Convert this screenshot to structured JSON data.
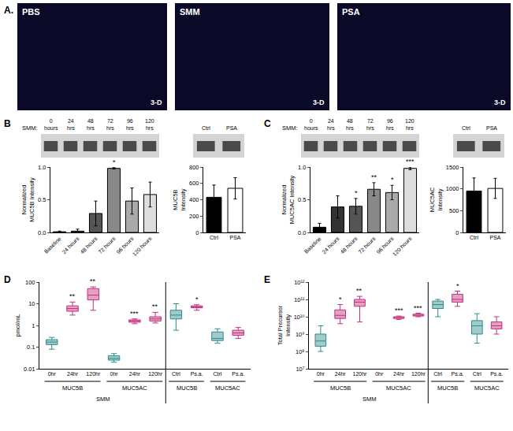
{
  "chart_data": [
    {
      "type": "image",
      "panel": "A.",
      "label": "PBS",
      "view": "3-D"
    },
    {
      "type": "image",
      "label": "SMM",
      "view": "3-D"
    },
    {
      "type": "image",
      "label": "PSA",
      "view": "3-D"
    },
    {
      "type": "blot",
      "panel": "B",
      "prefix": "SMM:",
      "lanes": [
        "0 hours",
        "24 hrs",
        "48 hrs",
        "72 hrs",
        "96 hrs",
        "120 hrs"
      ]
    },
    {
      "type": "bar",
      "categories": [
        "Baseline",
        "24 hours",
        "48 hours",
        "72 hours",
        "96 hours",
        "120 hours"
      ],
      "values": [
        0.01,
        0.02,
        0.29,
        0.98,
        0.48,
        0.58
      ],
      "errors": [
        0.01,
        0.03,
        0.19,
        0.01,
        0.2,
        0.19
      ],
      "significance": [
        null,
        null,
        null,
        "*",
        null,
        null
      ],
      "colors": [
        "#000000",
        "#333333",
        "#555555",
        "#888888",
        "#aaaaaa",
        "#dddddd"
      ],
      "ylabel": "Normalized MUC5B Intensity",
      "ylim": [
        0,
        1
      ],
      "yticks": [
        {
          "value": 0,
          "label": "0.0"
        },
        0.5,
        {
          "value": 1,
          "label": "1.0"
        }
      ]
    },
    {
      "type": "blot",
      "lanes": [
        "Ctrl",
        "PSA"
      ]
    },
    {
      "type": "bar",
      "categories": [
        "Ctrl",
        "PSA"
      ],
      "values": [
        430,
        540
      ],
      "errors": [
        150,
        130
      ],
      "colors": [
        "#000000",
        "#ffffff"
      ],
      "ylabel": "MUC5B Intensity",
      "ylim": [
        0,
        800
      ],
      "yticks": [
        0,
        200,
        400,
        600,
        800
      ]
    },
    {
      "type": "blot",
      "panel": "C",
      "prefix": "SMM:",
      "lanes": [
        "0 hours",
        "24 hrs",
        "48 hrs",
        "72 hrs",
        "96 hrs",
        "120 hrs"
      ]
    },
    {
      "type": "bar",
      "categories": [
        "Baseline",
        "24 hours",
        "48 hours",
        "72 hours",
        "96 hours",
        "120 hours"
      ],
      "values": [
        0.08,
        0.39,
        0.4,
        0.66,
        0.61,
        0.98
      ],
      "errors": [
        0.06,
        0.17,
        0.12,
        0.1,
        0.11,
        0.02
      ],
      "significance": [
        null,
        null,
        "*",
        "**",
        "*",
        "***"
      ],
      "colors": [
        "#000000",
        "#333333",
        "#555555",
        "#888888",
        "#aaaaaa",
        "#dddddd"
      ],
      "ylabel": "Normalized MUC5AC Intensity",
      "ylim": [
        0,
        1
      ],
      "yticks": [
        {
          "value": 0,
          "label": "0.0"
        },
        0.5,
        {
          "value": 1,
          "label": "1.0"
        }
      ]
    },
    {
      "type": "blot",
      "lanes": [
        "Ctrl",
        "PSA"
      ]
    },
    {
      "type": "bar",
      "categories": [
        "Ctrl",
        "PSA"
      ],
      "values": [
        950,
        1010
      ],
      "errors": [
        300,
        230
      ],
      "colors": [
        "#000000",
        "#ffffff"
      ],
      "ylabel": "MUC5AC Intensity",
      "ylim": [
        0,
        1500
      ],
      "yticks": [
        0,
        500,
        1000,
        1500
      ]
    },
    {
      "type": "box",
      "panel": "D",
      "ylabel": "pmol/mL",
      "log": "y",
      "ylim": [
        0.01,
        100
      ],
      "yticks": [
        0.01,
        0.1,
        1,
        10,
        100
      ],
      "boxes": [
        {
          "category": "0hr",
          "group": "MUC5B",
          "section": "SMM",
          "color": "#2e8b8b",
          "min": 0.08,
          "q1": 0.13,
          "median": 0.17,
          "q3": 0.22,
          "max": 0.28
        },
        {
          "category": "24hr",
          "group": "MUC5B",
          "section": "SMM",
          "color": "#c2307c",
          "min": 3,
          "q1": 4.5,
          "median": 6,
          "q3": 8,
          "max": 12,
          "significance": "**"
        },
        {
          "category": "120hr",
          "group": "MUC5B",
          "section": "SMM",
          "color": "#c2307c",
          "min": 5,
          "q1": 15,
          "median": 25,
          "q3": 50,
          "max": 60,
          "significance": "**"
        },
        {
          "category": "0hr",
          "group": "MUC5AC",
          "section": "SMM",
          "color": "#2e8b8b",
          "min": 0.02,
          "q1": 0.025,
          "median": 0.03,
          "q3": 0.04,
          "max": 0.05
        },
        {
          "category": "24hr",
          "group": "MUC5AC",
          "section": "SMM",
          "color": "#c2307c",
          "min": 1.2,
          "q1": 1.4,
          "median": 1.6,
          "q3": 1.8,
          "max": 2,
          "significance": "***"
        },
        {
          "category": "120hr",
          "group": "MUC5AC",
          "section": "SMM",
          "color": "#c2307c",
          "min": 1.3,
          "q1": 1.6,
          "median": 2,
          "q3": 2.5,
          "max": 4,
          "significance": "**"
        },
        {
          "category": "Ctrl",
          "group": "MUC5B",
          "color": "#2e8b8b",
          "min": 0.6,
          "q1": 2,
          "median": 3,
          "q3": 5,
          "max": 10
        },
        {
          "category": "Ps.a.",
          "group": "MUC5B",
          "color": "#c2307c",
          "min": 5,
          "q1": 6.5,
          "median": 7,
          "q3": 8,
          "max": 9,
          "significance": "*"
        },
        {
          "category": "Ctrl",
          "group": "MUC5AC",
          "color": "#2e8b8b",
          "min": 0.15,
          "q1": 0.2,
          "median": 0.25,
          "q3": 0.5,
          "max": 0.7
        },
        {
          "category": "Ps.a.",
          "group": "MUC5AC",
          "color": "#c2307c",
          "min": 0.25,
          "q1": 0.35,
          "median": 0.45,
          "q3": 0.6,
          "max": 0.8
        }
      ]
    },
    {
      "type": "box",
      "panel": "E",
      "ylabel": "Total Precursor Intensity",
      "log": "y",
      "ylim": [
        10000000,
        1000000000000
      ],
      "yticks": [
        {
          "value": 10000000,
          "label": "10⁷"
        },
        {
          "value": 100000000,
          "label": "10⁸"
        },
        {
          "value": 1000000000,
          "label": "10⁹"
        },
        {
          "value": 10000000000,
          "label": "10¹⁰"
        },
        {
          "value": 100000000000,
          "label": "10¹¹"
        },
        {
          "value": 1000000000000,
          "label": "10¹²"
        }
      ],
      "boxes": [
        {
          "category": "0hr",
          "group": "MUC5B",
          "section": "SMM",
          "color": "#2e8b8b",
          "min": 100000000,
          "q1": 200000000,
          "median": 400000000,
          "q3": 1000000000,
          "max": 3000000000
        },
        {
          "category": "24hr",
          "group": "MUC5B",
          "section": "SMM",
          "color": "#c2307c",
          "min": 4000000000,
          "q1": 8000000000,
          "median": 12000000000,
          "q3": 25000000000,
          "max": 50000000000,
          "significance": "*"
        },
        {
          "category": "120hr",
          "group": "MUC5B",
          "section": "SMM",
          "color": "#c2307c",
          "min": 5000000000,
          "q1": 40000000000,
          "median": 70000000000,
          "q3": 100000000000,
          "max": 150000000000,
          "significance": "**"
        },
        {
          "category": "0hr",
          "group": "MUC5AC",
          "section": "SMM"
        },
        {
          "category": "24hr",
          "group": "MUC5AC",
          "section": "SMM",
          "color": "#c2307c",
          "min": 7000000000,
          "q1": 8000000000,
          "median": 9000000000,
          "q3": 10000000000,
          "max": 11000000000,
          "significance": "***"
        },
        {
          "category": "120hr",
          "group": "MUC5AC",
          "section": "SMM",
          "color": "#c2307c",
          "min": 10000000000,
          "q1": 11000000000,
          "median": 12000000000,
          "q3": 14000000000,
          "max": 16000000000,
          "significance": "***"
        },
        {
          "category": "Ctrl",
          "group": "MUC5B",
          "color": "#2e8b8b",
          "min": 10000000000,
          "q1": 30000000000,
          "median": 50000000000,
          "q3": 80000000000,
          "max": 100000000000
        },
        {
          "category": "Ps.a.",
          "group": "MUC5B",
          "color": "#c2307c",
          "min": 40000000000,
          "q1": 70000000000,
          "median": 100000000000,
          "q3": 200000000000,
          "max": 300000000000,
          "significance": "*"
        },
        {
          "category": "Ctrl",
          "group": "MUC5AC",
          "color": "#2e8b8b",
          "min": 300000000,
          "q1": 1000000000,
          "median": 3000000000,
          "q3": 6000000000,
          "max": 15000000000
        },
        {
          "category": "Ps.a.",
          "group": "MUC5AC",
          "color": "#c2307c",
          "min": 1000000000,
          "q1": 2000000000,
          "median": 3000000000,
          "q3": 5000000000,
          "max": 10000000000
        }
      ]
    }
  ]
}
